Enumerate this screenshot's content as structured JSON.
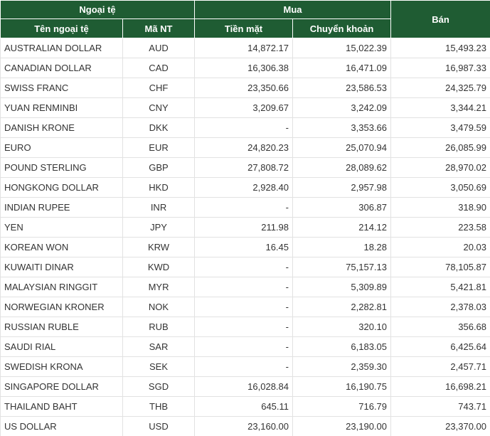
{
  "header": {
    "currency_group": "Ngoại tệ",
    "buy_group": "Mua",
    "sell": "Bán",
    "name": "Tên ngoại tệ",
    "code": "Mã NT",
    "cash": "Tiền mặt",
    "transfer": "Chuyển khoản"
  },
  "table": {
    "rows": [
      [
        "AUSTRALIAN DOLLAR",
        "AUD",
        "14,872.17",
        "15,022.39",
        "15,493.23"
      ],
      [
        "CANADIAN DOLLAR",
        "CAD",
        "16,306.38",
        "16,471.09",
        "16,987.33"
      ],
      [
        "SWISS FRANC",
        "CHF",
        "23,350.66",
        "23,586.53",
        "24,325.79"
      ],
      [
        "YUAN RENMINBI",
        "CNY",
        "3,209.67",
        "3,242.09",
        "3,344.21"
      ],
      [
        "DANISH KRONE",
        "DKK",
        "-",
        "3,353.66",
        "3,479.59"
      ],
      [
        "EURO",
        "EUR",
        "24,820.23",
        "25,070.94",
        "26,085.99"
      ],
      [
        "POUND STERLING",
        "GBP",
        "27,808.72",
        "28,089.62",
        "28,970.02"
      ],
      [
        "HONGKONG DOLLAR",
        "HKD",
        "2,928.40",
        "2,957.98",
        "3,050.69"
      ],
      [
        "INDIAN RUPEE",
        "INR",
        "-",
        "306.87",
        "318.90"
      ],
      [
        "YEN",
        "JPY",
        "211.98",
        "214.12",
        "223.58"
      ],
      [
        "KOREAN WON",
        "KRW",
        "16.45",
        "18.28",
        "20.03"
      ],
      [
        "KUWAITI DINAR",
        "KWD",
        "-",
        "75,157.13",
        "78,105.87"
      ],
      [
        "MALAYSIAN RINGGIT",
        "MYR",
        "-",
        "5,309.89",
        "5,421.81"
      ],
      [
        "NORWEGIAN KRONER",
        "NOK",
        "-",
        "2,282.81",
        "2,378.03"
      ],
      [
        "RUSSIAN RUBLE",
        "RUB",
        "-",
        "320.10",
        "356.68"
      ],
      [
        "SAUDI RIAL",
        "SAR",
        "-",
        "6,183.05",
        "6,425.64"
      ],
      [
        "SWEDISH KRONA",
        "SEK",
        "-",
        "2,359.30",
        "2,457.71"
      ],
      [
        "SINGAPORE DOLLAR",
        "SGD",
        "16,028.84",
        "16,190.75",
        "16,698.21"
      ],
      [
        "THAILAND BAHT",
        "THB",
        "645.11",
        "716.79",
        "743.71"
      ],
      [
        "US DOLLAR",
        "USD",
        "23,160.00",
        "23,190.00",
        "23,370.00"
      ]
    ]
  }
}
